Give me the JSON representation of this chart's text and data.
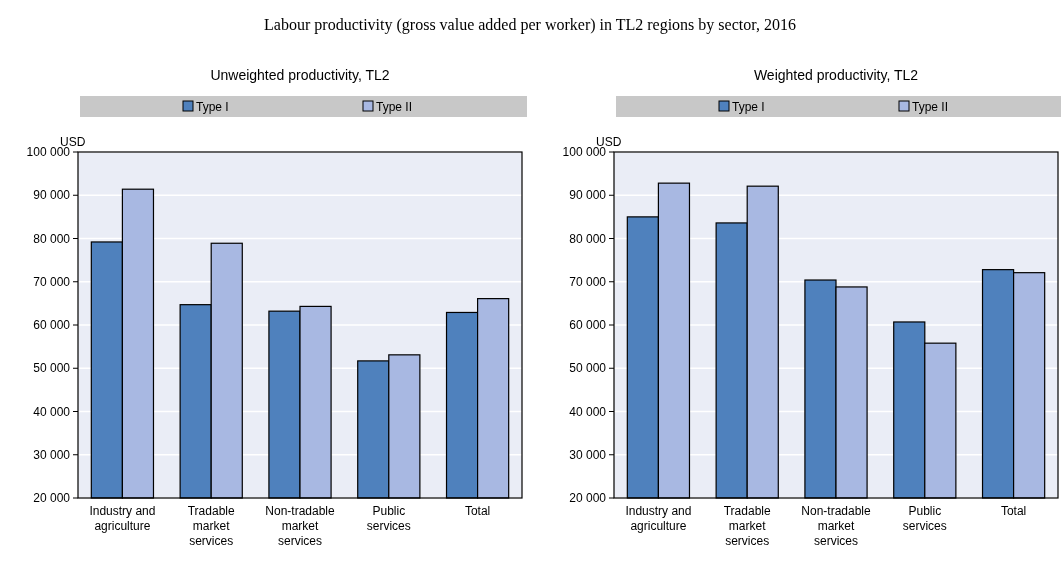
{
  "chart_data": [
    {
      "type": "bar",
      "title": "Unweighted productivity, TL2",
      "ylabel": "USD",
      "annotations": [
        "Labour productivity (gross value added per worker) in TL2 regions by sector, 2016"
      ],
      "categories": [
        "Industry and agriculture",
        "Tradable market services",
        "Non-tradable market services",
        "Public services",
        "Total"
      ],
      "series": [
        {
          "name": "Type I",
          "color": "#4f81bd",
          "values": [
            79200,
            64700,
            63200,
            51700,
            62900
          ]
        },
        {
          "name": "Type II",
          "color": "#a8b8e2",
          "values": [
            91400,
            78900,
            64300,
            53100,
            66100
          ]
        }
      ],
      "ylim": [
        20000,
        100000
      ],
      "yticks": [
        {
          "value": 20000,
          "label": "20 000"
        },
        {
          "value": 30000,
          "label": "30 000"
        },
        {
          "value": 40000,
          "label": "40 000"
        },
        {
          "value": 50000,
          "label": "50 000"
        },
        {
          "value": 60000,
          "label": "60 000"
        },
        {
          "value": 70000,
          "label": "70 000"
        },
        {
          "value": 80000,
          "label": "80 000"
        },
        {
          "value": 90000,
          "label": "90 000"
        },
        {
          "value": 100000,
          "label": "100 000"
        }
      ],
      "grid": "y",
      "legend": "top"
    },
    {
      "type": "bar",
      "title": "Weighted productivity, TL2",
      "ylabel": "USD",
      "categories": [
        "Industry and agriculture",
        "Tradable market services",
        "Non-tradable market services",
        "Public services",
        "Total"
      ],
      "series": [
        {
          "name": "Type I",
          "color": "#4f81bd",
          "values": [
            85000,
            83600,
            70400,
            60700,
            72800
          ]
        },
        {
          "name": "Type II",
          "color": "#a8b8e2",
          "values": [
            92800,
            92100,
            68800,
            55800,
            72100
          ]
        }
      ],
      "ylim": [
        20000,
        100000
      ],
      "yticks": [
        {
          "value": 20000,
          "label": "20 000"
        },
        {
          "value": 30000,
          "label": "30 000"
        },
        {
          "value": 40000,
          "label": "40 000"
        },
        {
          "value": 50000,
          "label": "50 000"
        },
        {
          "value": 60000,
          "label": "60 000"
        },
        {
          "value": 70000,
          "label": "70 000"
        },
        {
          "value": 80000,
          "label": "80 000"
        },
        {
          "value": 90000,
          "label": "90 000"
        },
        {
          "value": 100000,
          "label": "100 000"
        }
      ],
      "grid": "y",
      "legend": "top"
    }
  ]
}
